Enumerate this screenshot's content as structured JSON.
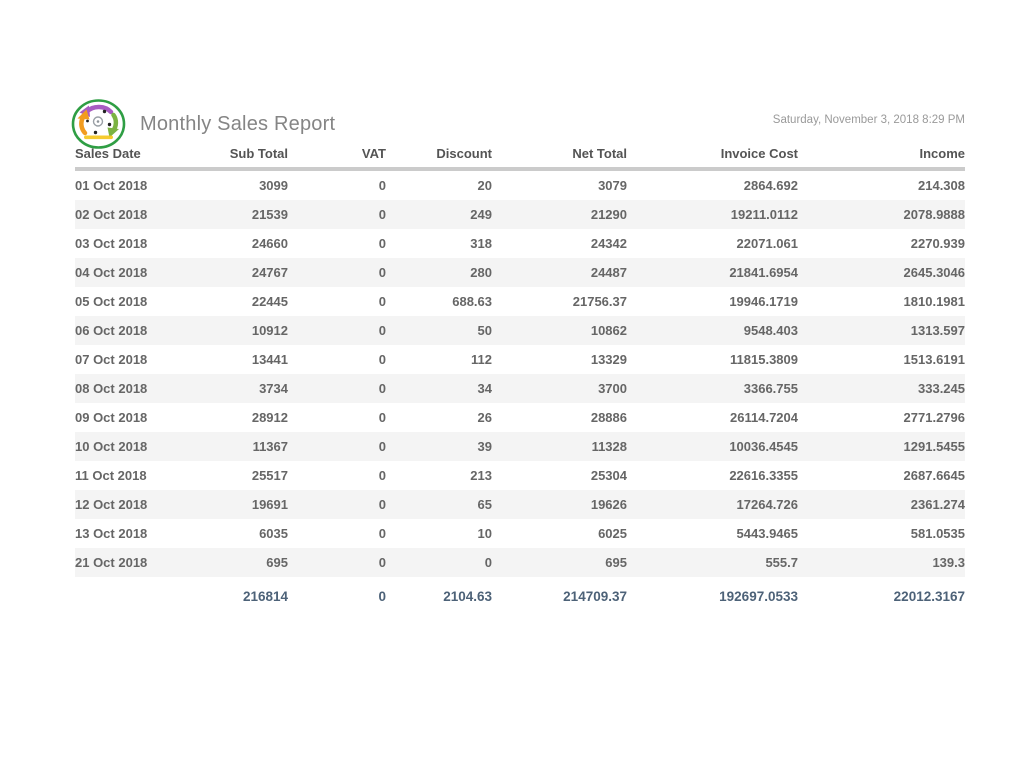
{
  "header": {
    "title": "Monthly Sales Report",
    "timestamp": "Saturday, November 3, 2018 8:29 PM",
    "logo_icon": "circular-recycle-arrows-logo"
  },
  "table": {
    "columns": [
      "Sales Date",
      "Sub Total",
      "VAT",
      "Discount",
      "Net Total",
      "Invoice Cost",
      "Income"
    ],
    "rows": [
      [
        "01 Oct 2018",
        "3099",
        "0",
        "20",
        "3079",
        "2864.692",
        "214.308"
      ],
      [
        "02 Oct 2018",
        "21539",
        "0",
        "249",
        "21290",
        "19211.0112",
        "2078.9888"
      ],
      [
        "03 Oct 2018",
        "24660",
        "0",
        "318",
        "24342",
        "22071.061",
        "2270.939"
      ],
      [
        "04 Oct 2018",
        "24767",
        "0",
        "280",
        "24487",
        "21841.6954",
        "2645.3046"
      ],
      [
        "05 Oct 2018",
        "22445",
        "0",
        "688.63",
        "21756.37",
        "19946.1719",
        "1810.1981"
      ],
      [
        "06 Oct 2018",
        "10912",
        "0",
        "50",
        "10862",
        "9548.403",
        "1313.597"
      ],
      [
        "07 Oct 2018",
        "13441",
        "0",
        "112",
        "13329",
        "11815.3809",
        "1513.6191"
      ],
      [
        "08 Oct 2018",
        "3734",
        "0",
        "34",
        "3700",
        "3366.755",
        "333.245"
      ],
      [
        "09 Oct 2018",
        "28912",
        "0",
        "26",
        "28886",
        "26114.7204",
        "2771.2796"
      ],
      [
        "10 Oct 2018",
        "11367",
        "0",
        "39",
        "11328",
        "10036.4545",
        "1291.5455"
      ],
      [
        "11 Oct 2018",
        "25517",
        "0",
        "213",
        "25304",
        "22616.3355",
        "2687.6645"
      ],
      [
        "12 Oct 2018",
        "19691",
        "0",
        "65",
        "19626",
        "17264.726",
        "2361.274"
      ],
      [
        "13 Oct 2018",
        "6035",
        "0",
        "10",
        "6025",
        "5443.9465",
        "581.0535"
      ],
      [
        "21 Oct 2018",
        "695",
        "0",
        "0",
        "695",
        "555.7",
        "139.3"
      ]
    ],
    "totals": [
      "",
      "216814",
      "0",
      "2104.63",
      "214709.37",
      "192697.0533",
      "22012.3167"
    ]
  },
  "colors": {
    "logo_ring_green": "#2f9e44",
    "logo_purple": "#a85cc2",
    "logo_green": "#7cb342",
    "logo_orange": "#f29c1f",
    "logo_band_yellow": "#f5c518",
    "divider_gray": "#cbcbcb",
    "row_alt_gray": "#f4f4f4",
    "body_text_gray": "#666666",
    "totals_text_slate": "#4d6278"
  }
}
